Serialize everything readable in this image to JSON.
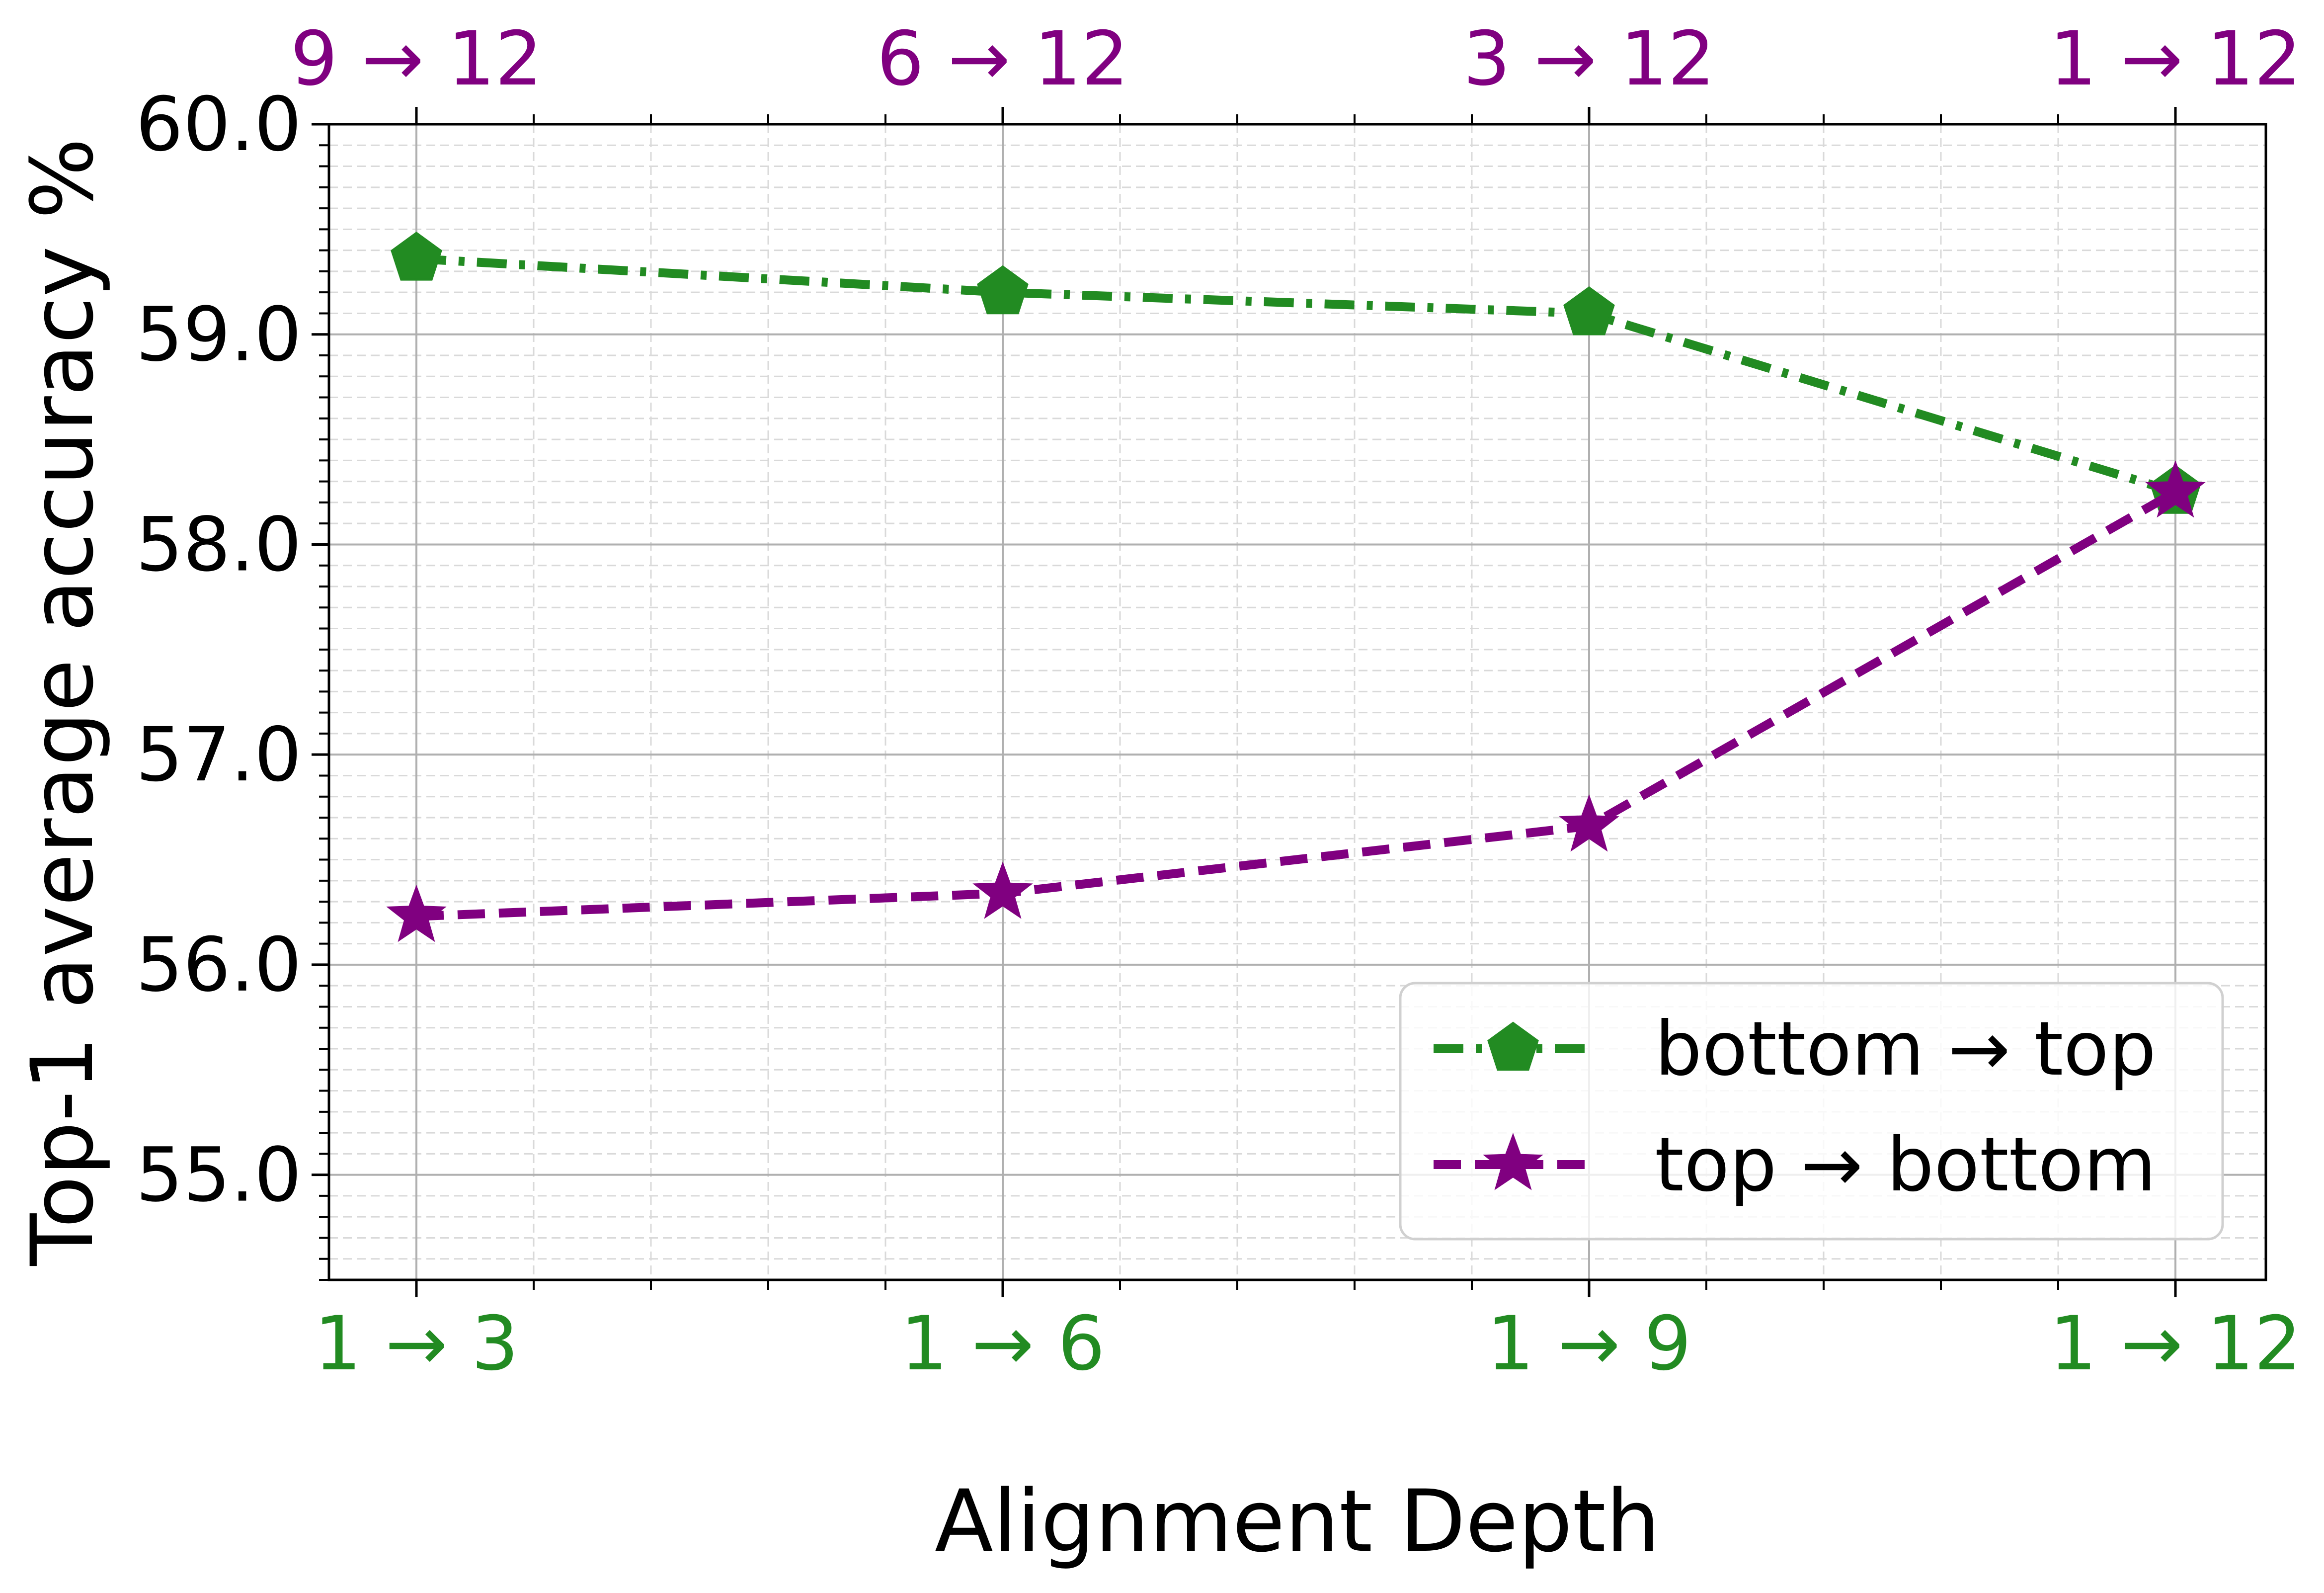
{
  "chart_data": {
    "type": "line",
    "title": "",
    "xlabel": "Alignment Depth",
    "ylabel": "Top-1 average accuracy %",
    "categories_bottom": [
      "1 → 3",
      "1 → 6",
      "1 → 9",
      "1 → 12"
    ],
    "categories_top": [
      "9 → 12",
      "6 → 12",
      "3 → 12",
      "1 → 12"
    ],
    "ylim": [
      54.5,
      60.0
    ],
    "yticks": [
      "55.0",
      "56.0",
      "57.0",
      "58.0",
      "59.0",
      "60.0"
    ],
    "grid": true,
    "legend_position": "lower right",
    "series": [
      {
        "name": "bottom → top",
        "values": [
          59.36,
          59.2,
          59.1,
          58.25
        ],
        "color": "#228b22",
        "line_style": "dash-dot",
        "marker": "pentagon"
      },
      {
        "name": "top → bottom",
        "values": [
          56.23,
          56.34,
          56.66,
          58.25
        ],
        "color": "#800080",
        "line_style": "dashed",
        "marker": "star"
      }
    ],
    "bottom_tick_color": "#228b22",
    "top_tick_color": "#800080"
  }
}
